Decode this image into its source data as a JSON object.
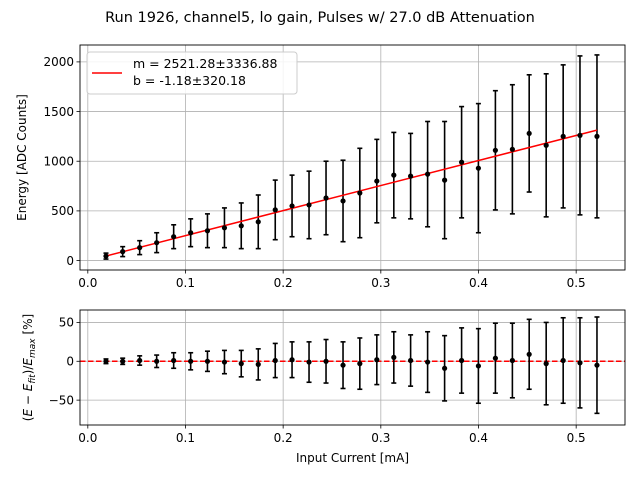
{
  "chart_data": [
    {
      "type": "scatter",
      "title": "Run 1926, channel5, lo gain, Pulses w/ 27.0 dB Attenuation",
      "xlabel": "",
      "ylabel": "Energy [ADC Counts]",
      "xlim": [
        -0.008,
        0.55
      ],
      "ylim": [
        -95,
        2170
      ],
      "xticks": [
        0.0,
        0.1,
        0.2,
        0.3,
        0.4,
        0.5
      ],
      "xtick_labels": [
        "0.0",
        "0.1",
        "0.2",
        "0.3",
        "0.4",
        "0.5"
      ],
      "yticks": [
        0,
        500,
        1000,
        1500,
        2000
      ],
      "ytick_labels": [
        "0",
        "500",
        "1000",
        "1500",
        "2000"
      ],
      "grid": true,
      "x": [
        0.0186,
        0.0357,
        0.0531,
        0.0705,
        0.0879,
        0.1053,
        0.1225,
        0.1399,
        0.1571,
        0.1745,
        0.1919,
        0.2091,
        0.2265,
        0.2439,
        0.2613,
        0.2785,
        0.2959,
        0.3133,
        0.3305,
        0.3479,
        0.3653,
        0.3827,
        0.3999,
        0.4173,
        0.4347,
        0.4519,
        0.4693,
        0.4867,
        0.5039,
        0.5213
      ],
      "y": [
        45,
        90,
        130,
        180,
        240,
        280,
        300,
        330,
        350,
        390,
        510,
        550,
        560,
        630,
        600,
        680,
        800,
        860,
        850,
        870,
        810,
        990,
        930,
        1110,
        1120,
        1280,
        1160,
        1250,
        1260,
        1250
      ],
      "yerr": [
        30,
        50,
        70,
        100,
        120,
        140,
        170,
        200,
        230,
        270,
        300,
        310,
        340,
        370,
        410,
        450,
        420,
        430,
        430,
        530,
        590,
        560,
        650,
        600,
        650,
        590,
        720,
        720,
        800,
        820
      ],
      "fit_line": {
        "x": [
          0.0186,
          0.5213
        ],
        "y": [
          45.7,
          1313.3
        ]
      },
      "legend": [
        "m = 2521.28±3336.88",
        "b = -1.18±320.18"
      ],
      "legend_position": "upper-left",
      "colors": {
        "data": "#000000",
        "fit": "#ff0000",
        "grid": "#b0b0b0"
      }
    },
    {
      "type": "scatter",
      "title": "",
      "xlabel": "Input Current [mA]",
      "ylabel": "(E − E_fit)/E_max [%]",
      "ylabel_parts": {
        "open": "(",
        "E": "E",
        "minus": " − ",
        "Efit_base": "E",
        "Efit_sub": "fit",
        "close": ")/",
        "Emax_base": "E",
        "Emax_sub": "max",
        "unit": " [%]"
      },
      "xlim": [
        -0.008,
        0.55
      ],
      "ylim": [
        -82,
        66
      ],
      "xticks": [
        0.0,
        0.1,
        0.2,
        0.3,
        0.4,
        0.5
      ],
      "xtick_labels": [
        "0.0",
        "0.1",
        "0.2",
        "0.3",
        "0.4",
        "0.5"
      ],
      "yticks": [
        -50,
        0,
        50
      ],
      "ytick_labels": [
        "−50",
        "0",
        "50"
      ],
      "grid": true,
      "x": [
        0.0186,
        0.0357,
        0.0531,
        0.0705,
        0.0879,
        0.1053,
        0.1225,
        0.1399,
        0.1571,
        0.1745,
        0.1919,
        0.2091,
        0.2265,
        0.2439,
        0.2613,
        0.2785,
        0.2959,
        0.3133,
        0.3305,
        0.3479,
        0.3653,
        0.3827,
        0.3999,
        0.4173,
        0.4347,
        0.4519,
        0.4693,
        0.4867,
        0.5039,
        0.5213
      ],
      "y": [
        0,
        0,
        1,
        0,
        1,
        0,
        0,
        -1,
        -3,
        -4,
        1,
        2,
        -1,
        0,
        -5,
        -3,
        2,
        5,
        1,
        -1,
        -9,
        1,
        -6,
        4,
        1,
        9,
        -3,
        1,
        -2,
        -5
      ],
      "yerr": [
        3,
        4,
        6,
        8,
        10,
        11,
        13,
        15,
        17,
        20,
        22,
        23,
        26,
        28,
        30,
        33,
        32,
        33,
        33,
        39,
        42,
        42,
        48,
        45,
        48,
        45,
        53,
        55,
        58,
        62
      ],
      "reference_line": {
        "y": 0,
        "style": "dashed"
      },
      "colors": {
        "data": "#000000",
        "reference": "#ff0000",
        "grid": "#b0b0b0"
      }
    }
  ]
}
